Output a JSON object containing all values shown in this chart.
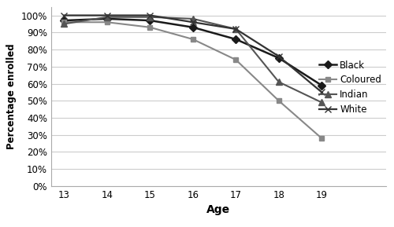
{
  "ages": [
    13,
    14,
    15,
    16,
    17,
    18,
    19
  ],
  "series": {
    "Black": {
      "values": [
        0.97,
        0.98,
        0.97,
        0.93,
        0.86,
        0.75,
        0.59
      ],
      "color": "#1a1a1a",
      "marker": "D",
      "markersize": 5,
      "linewidth": 1.8
    },
    "Coloured": {
      "values": [
        0.96,
        0.96,
        0.93,
        0.86,
        0.74,
        0.5,
        0.28
      ],
      "color": "#888888",
      "marker": "s",
      "markersize": 5,
      "linewidth": 1.5
    },
    "Indian": {
      "values": [
        0.95,
        0.99,
        0.99,
        0.98,
        0.92,
        0.61,
        0.49
      ],
      "color": "#555555",
      "marker": "^",
      "markersize": 6,
      "linewidth": 1.5
    },
    "White": {
      "values": [
        1.0,
        1.0,
        1.0,
        0.96,
        0.92,
        0.76,
        0.55
      ],
      "color": "#333333",
      "marker": "x",
      "markersize": 6,
      "linewidth": 1.6
    }
  },
  "xlabel": "Age",
  "ylabel": "Percentage enrolled",
  "ylim": [
    0.0,
    1.05
  ],
  "xlim": [
    12.7,
    20.5
  ],
  "yticks": [
    0.0,
    0.1,
    0.2,
    0.3,
    0.4,
    0.5,
    0.6,
    0.7,
    0.8,
    0.9,
    1.0
  ],
  "xticks": [
    13,
    14,
    15,
    16,
    17,
    18,
    19
  ],
  "grid_color": "#cccccc",
  "background_color": "#ffffff",
  "legend_order": [
    "Black",
    "Coloured",
    "Indian",
    "White"
  ]
}
